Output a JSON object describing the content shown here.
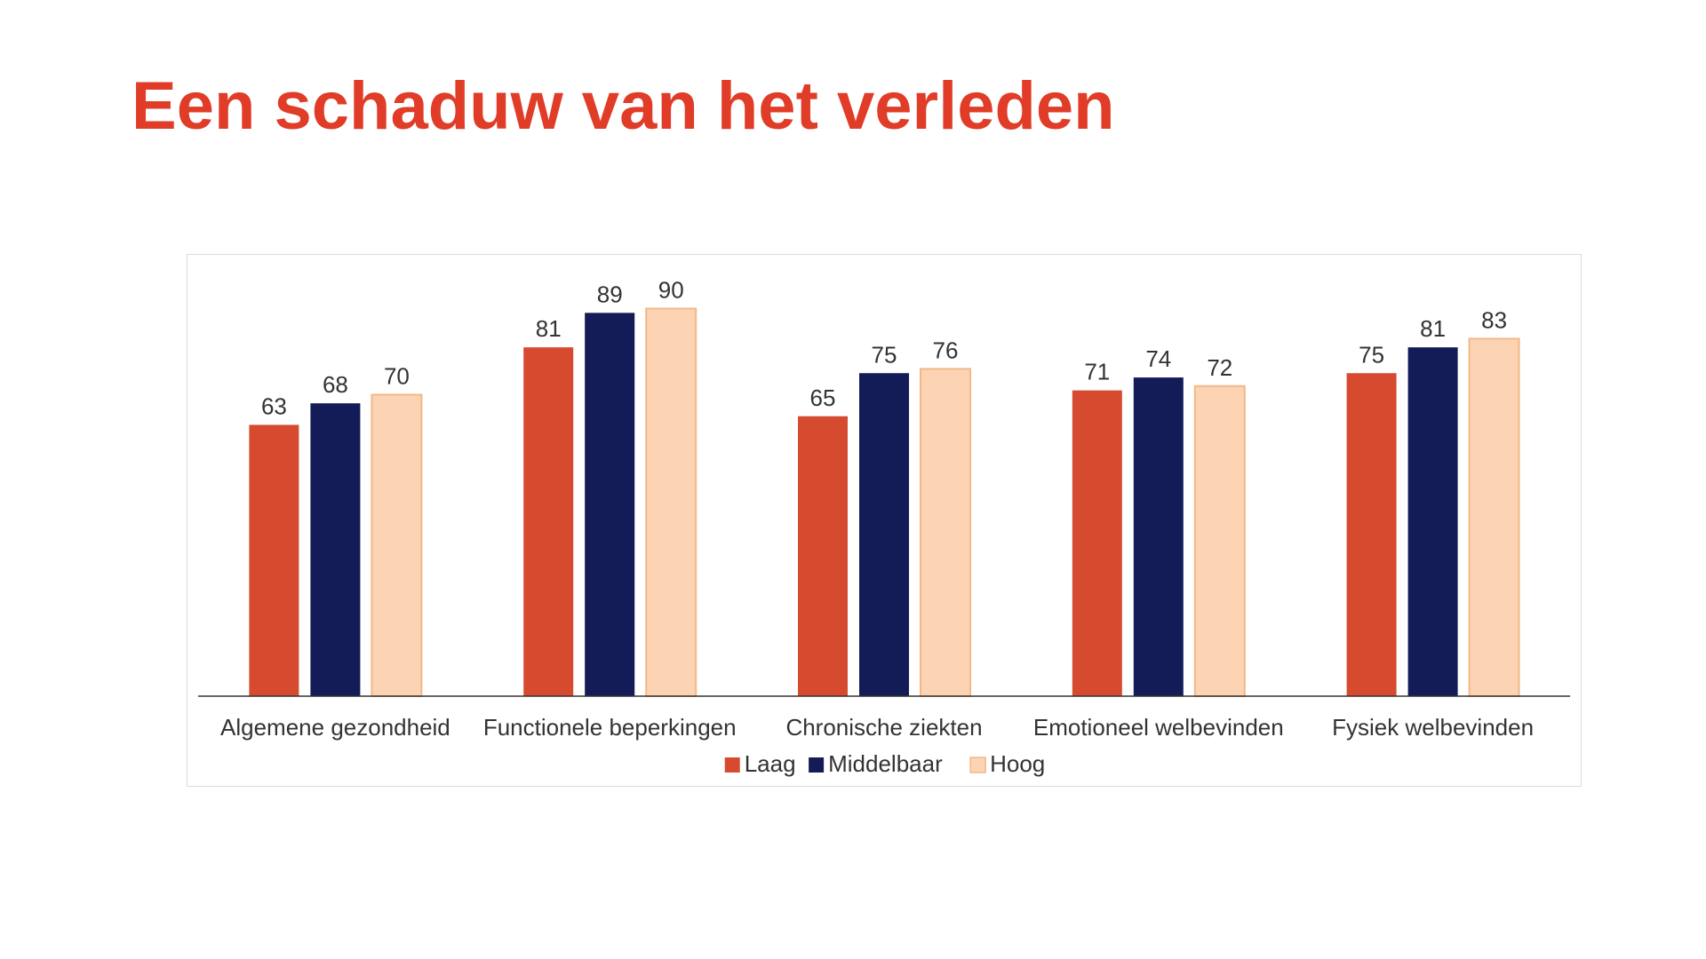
{
  "title": "Een schaduw van het verleden",
  "colors": {
    "title": "#e03c27",
    "axis": "#333333"
  },
  "chart_data": {
    "type": "bar",
    "categories": [
      "Algemene gezondheid",
      "Functionele beperkingen",
      "Chronische ziekten",
      "Emotioneel welbevinden",
      "Fysiek welbevinden"
    ],
    "series": [
      {
        "name": "Laag",
        "color": "#d64b30",
        "values": [
          63,
          81,
          65,
          71,
          75
        ]
      },
      {
        "name": "Middelbaar",
        "color": "#141c57",
        "values": [
          68,
          89,
          75,
          74,
          81
        ]
      },
      {
        "name": "Hoog",
        "color": "#fcd3b3",
        "values": [
          70,
          90,
          76,
          72,
          83
        ]
      }
    ],
    "ylim": [
      0,
      100
    ],
    "grid": false,
    "legend": "bottom-center",
    "data_labels": true
  }
}
